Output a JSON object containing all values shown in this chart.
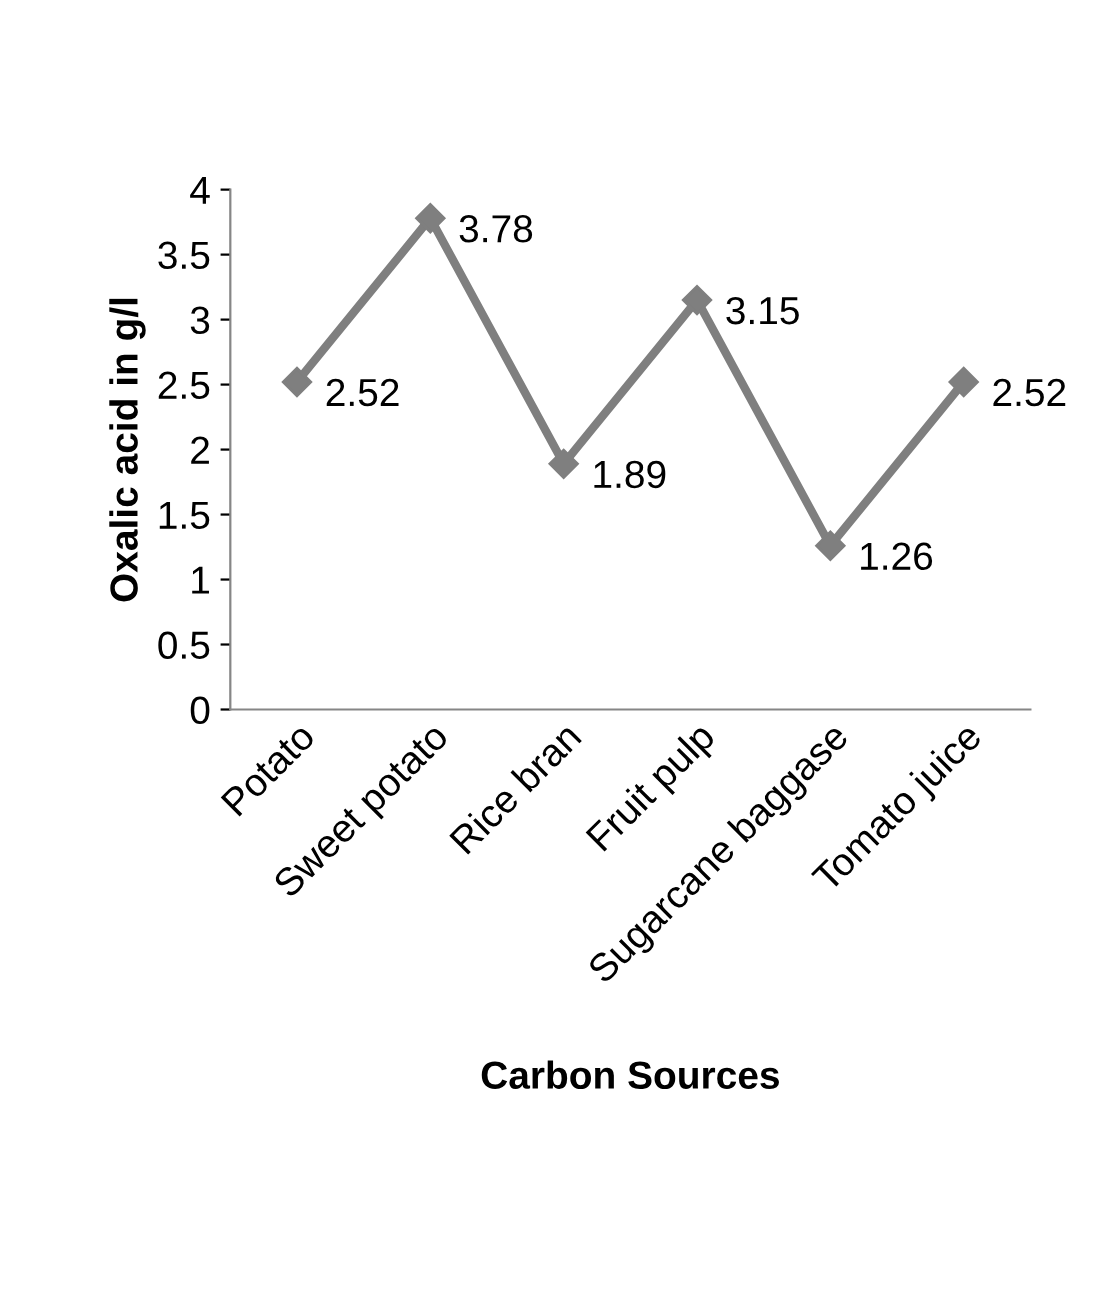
{
  "chart_data": {
    "type": "line",
    "xlabel": "Carbon Sources",
    "ylabel": "Oxalic acid in g/l",
    "categories": [
      "Potato",
      "Sweet potato",
      "Rice bran",
      "Fruit pulp",
      "Sugarcane baggase",
      "Tomato juice"
    ],
    "values": [
      2.52,
      3.78,
      1.89,
      3.15,
      1.26,
      2.52
    ],
    "color": "#7f7f7f",
    "marker": "diamond",
    "data_labels": true,
    "ylim": [
      0,
      4
    ],
    "yticks": [
      0,
      0.5,
      1,
      1.5,
      2,
      2.5,
      3,
      3.5,
      4
    ],
    "grid": false,
    "legend": false
  }
}
